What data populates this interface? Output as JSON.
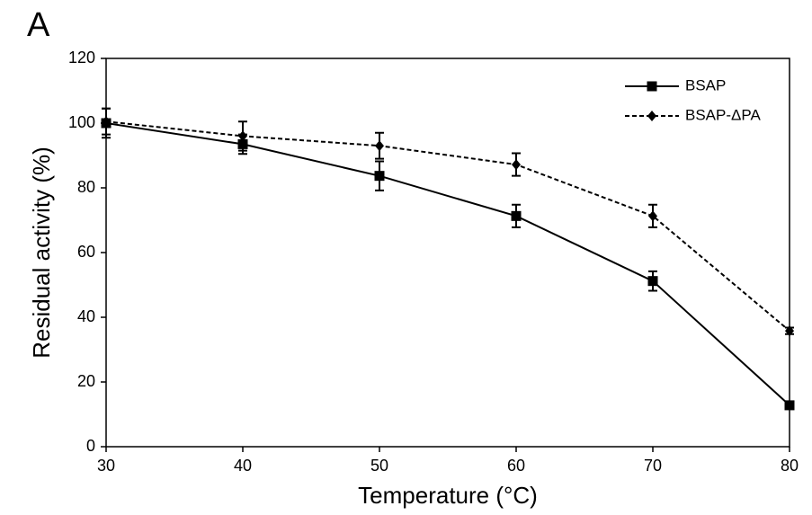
{
  "chart_data": {
    "type": "line",
    "panel_label": "A",
    "x_label": "Temperature (°C)",
    "y_label": "Residual activity (%)",
    "x": [
      30,
      40,
      50,
      60,
      70,
      80
    ],
    "series": [
      {
        "name": "BSAP",
        "color": "#000000",
        "dashed": false,
        "marker": "square",
        "values": [
          100,
          93.5,
          83.7,
          71.3,
          51.2,
          12.8
        ],
        "errors": [
          4.5,
          3,
          4.5,
          3.5,
          3,
          1
        ]
      },
      {
        "name": "BSAP-ΔPA",
        "color": "#000000",
        "dashed": true,
        "marker": "diamond",
        "values": [
          100.5,
          96,
          93,
          87.2,
          71.3,
          35.8
        ],
        "errors": [
          4,
          4.5,
          4,
          3.5,
          3.5,
          1
        ]
      }
    ],
    "xlim": [
      30,
      80
    ],
    "xticks": [
      30,
      40,
      50,
      60,
      70,
      80
    ],
    "ylim": [
      0,
      120
    ],
    "yticks": [
      0,
      20,
      40,
      60,
      80,
      100,
      120
    ],
    "grid": false,
    "legend": "top right"
  }
}
